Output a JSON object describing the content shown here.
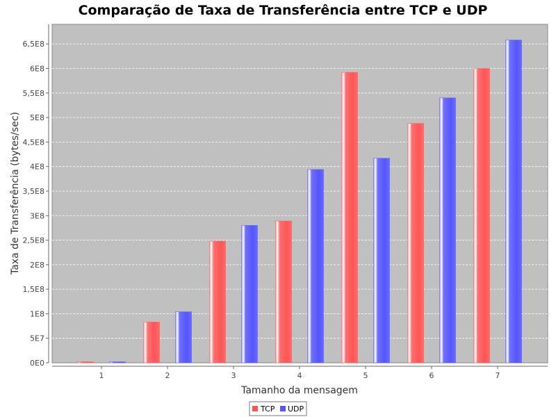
{
  "chart_data": {
    "type": "bar",
    "title": "Comparação de Taxa de Transferência entre TCP e UDP",
    "xlabel": "Tamanho da mensagem",
    "ylabel": "Taxa de Transferência (bytes/sec)",
    "categories": [
      "1",
      "2",
      "3",
      "4",
      "5",
      "6",
      "7"
    ],
    "series": [
      {
        "name": "TCP",
        "color": "#ff5555",
        "values": [
          2000000,
          83000000,
          248000000,
          289000000,
          592000000,
          488000000,
          600000000
        ]
      },
      {
        "name": "UDP",
        "color": "#5555ff",
        "values": [
          2000000,
          104000000,
          280000000,
          394000000,
          417000000,
          540000000,
          658000000
        ]
      }
    ],
    "ylim": [
      0,
      690000000
    ],
    "yticks": [
      {
        "value": 0,
        "label": "0E0"
      },
      {
        "value": 50000000,
        "label": "5E7"
      },
      {
        "value": 100000000,
        "label": "1E8"
      },
      {
        "value": 150000000,
        "label": "1,5E8"
      },
      {
        "value": 200000000,
        "label": "2E8"
      },
      {
        "value": 250000000,
        "label": "2,5E8"
      },
      {
        "value": 300000000,
        "label": "3E8"
      },
      {
        "value": 350000000,
        "label": "3,5E8"
      },
      {
        "value": 400000000,
        "label": "4E8"
      },
      {
        "value": 450000000,
        "label": "4,5E8"
      },
      {
        "value": 500000000,
        "label": "5E8"
      },
      {
        "value": 550000000,
        "label": "5,5E8"
      },
      {
        "value": 600000000,
        "label": "6E8"
      },
      {
        "value": 650000000,
        "label": "6,5E8"
      }
    ],
    "plot_background": "#c0c0c0",
    "gridlines": true,
    "legend_position": "bottom-center"
  }
}
